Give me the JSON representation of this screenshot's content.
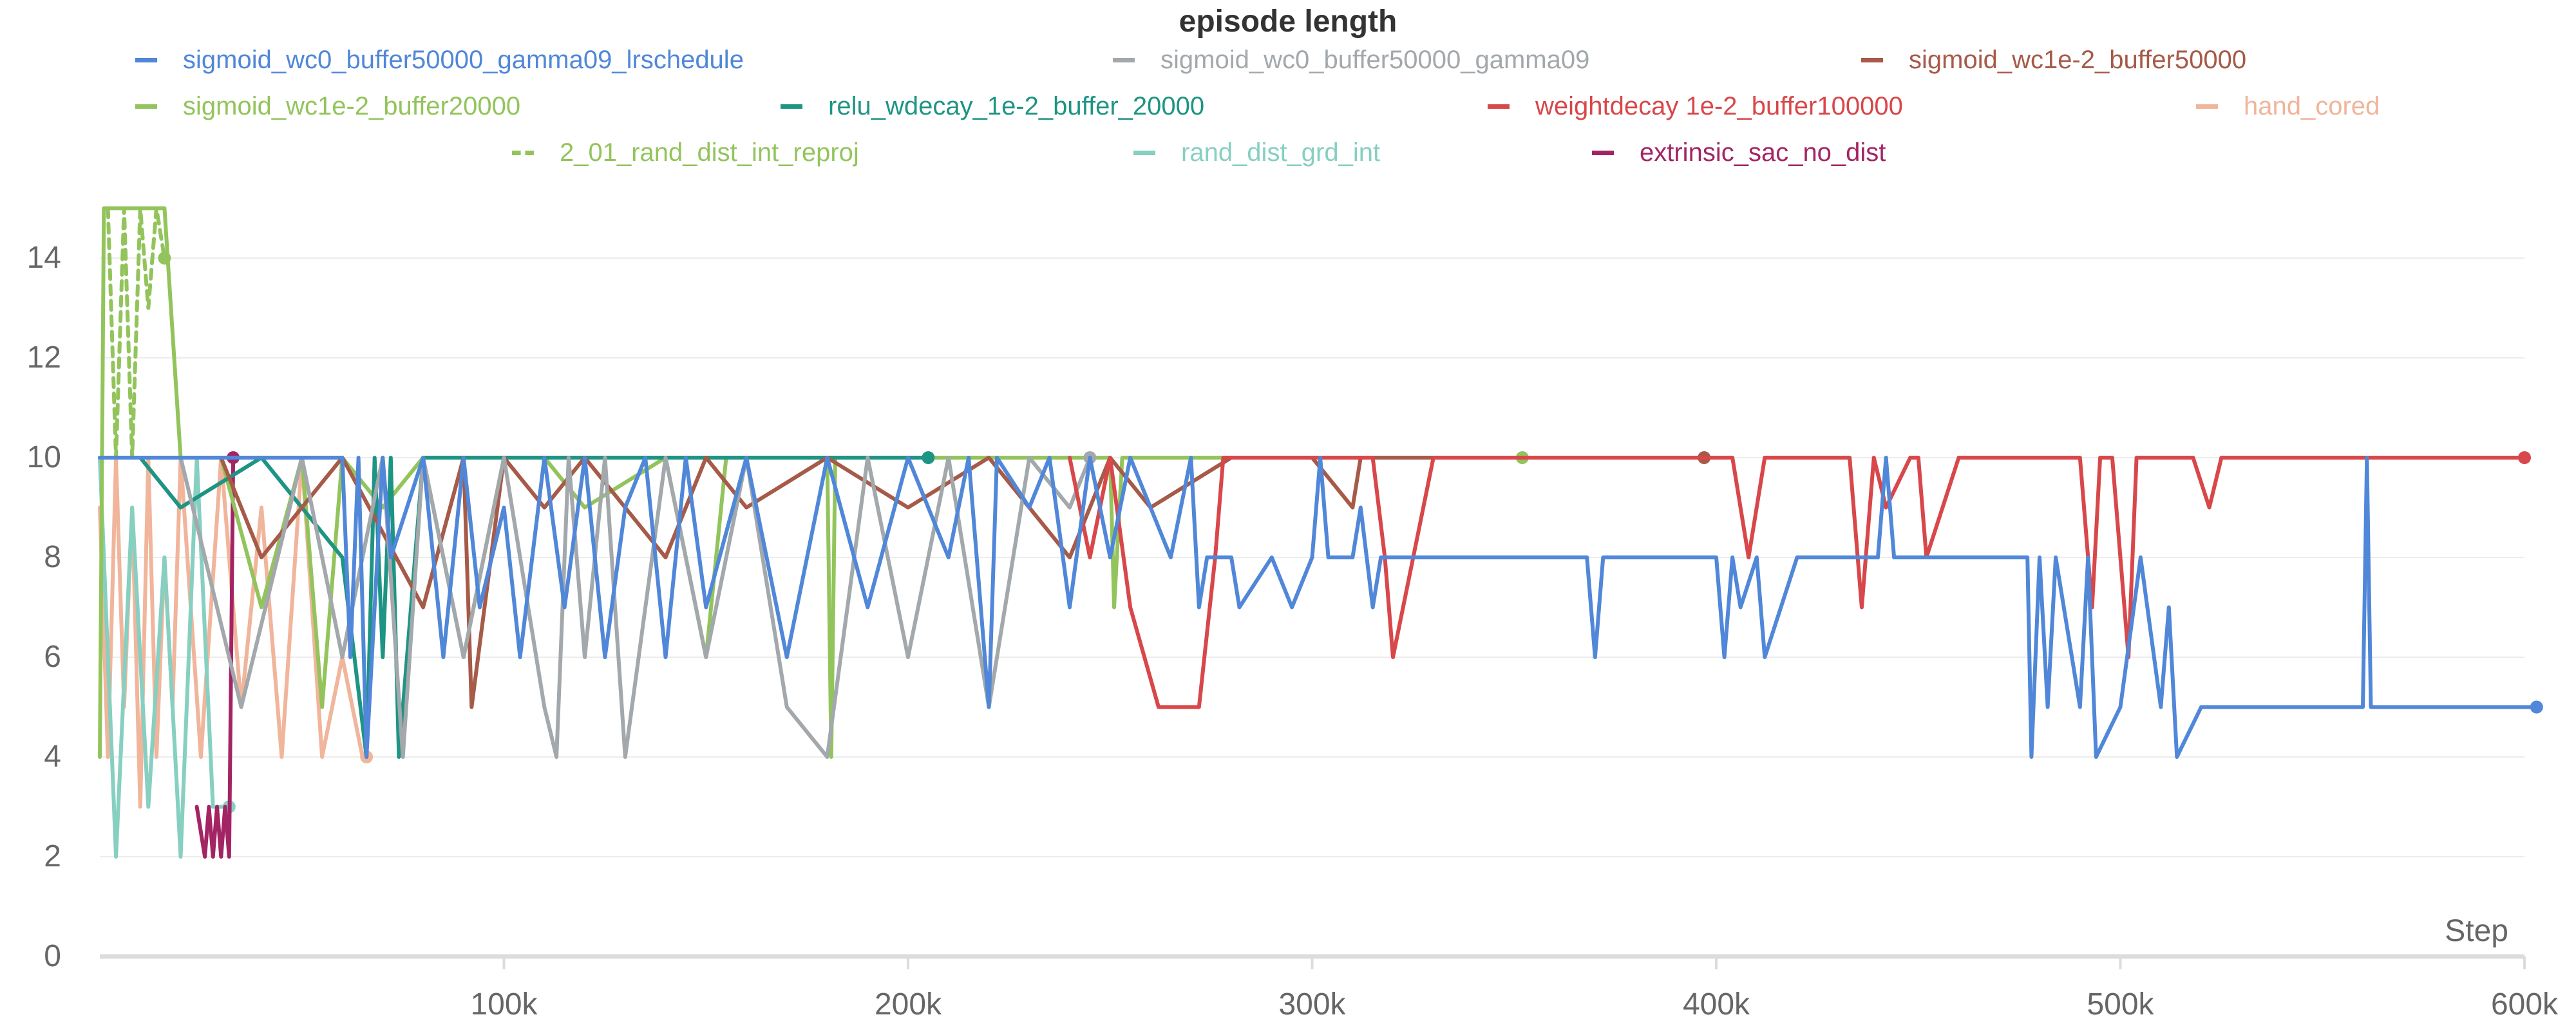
{
  "chart_data": {
    "type": "line",
    "title": "episode length",
    "xlabel": "Step",
    "ylabel": "",
    "xlim": [
      0,
      600000
    ],
    "ylim": [
      0,
      15
    ],
    "grid": true,
    "legend_position": "top",
    "x_ticks": [
      {
        "value": 100000,
        "label": "100k"
      },
      {
        "value": 200000,
        "label": "200k"
      },
      {
        "value": 300000,
        "label": "300k"
      },
      {
        "value": 400000,
        "label": "400k"
      },
      {
        "value": 500000,
        "label": "500k"
      },
      {
        "value": 600000,
        "label": "600k"
      }
    ],
    "y_ticks": [
      {
        "value": 0,
        "label": "0"
      },
      {
        "value": 2,
        "label": "2"
      },
      {
        "value": 4,
        "label": "4"
      },
      {
        "value": 6,
        "label": "6"
      },
      {
        "value": 8,
        "label": "8"
      },
      {
        "value": 10,
        "label": "10"
      },
      {
        "value": 12,
        "label": "12"
      },
      {
        "value": 14,
        "label": "14"
      }
    ],
    "series": [
      {
        "name": "sigmoid_wc0_buffer50000_gamma09_lrschedule",
        "color": "#5087d8",
        "dashed": false,
        "x": [
          0,
          2000,
          60000,
          62000,
          64000,
          66000,
          70000,
          72000,
          80000,
          85000,
          90000,
          94000,
          100000,
          104000,
          110000,
          115000,
          120000,
          125000,
          130000,
          135000,
          140000,
          145000,
          150000,
          160000,
          170000,
          180000,
          190000,
          200000,
          210000,
          215000,
          220000,
          222000,
          230000,
          235000,
          240000,
          245000,
          250000,
          255000,
          260000,
          265000,
          270000,
          272000,
          274000,
          280000,
          282000,
          290000,
          295000,
          300000,
          302000,
          304000,
          310000,
          312000,
          315000,
          317000,
          320000,
          330000,
          340000,
          350000,
          360000,
          368000,
          370000,
          372000,
          380000,
          390000,
          400000,
          402000,
          404000,
          406000,
          410000,
          412000,
          420000,
          440000,
          442000,
          444000,
          450000,
          470000,
          477000,
          478000,
          480000,
          482000,
          484000,
          490000,
          492000,
          494000,
          500000,
          505000,
          510000,
          512000,
          514000,
          520000,
          530000,
          540000,
          550000,
          560000,
          561000,
          562000,
          580000,
          600000,
          603000
        ],
        "y": [
          10,
          10,
          10,
          6,
          10,
          4,
          10,
          8,
          10,
          6,
          10,
          7,
          9,
          6,
          10,
          7,
          10,
          6,
          9,
          10,
          6,
          10,
          7,
          10,
          6,
          10,
          7,
          10,
          8,
          10,
          5,
          10,
          9,
          10,
          7,
          10,
          8,
          10,
          9,
          8,
          10,
          7,
          8,
          8,
          7,
          8,
          7,
          8,
          10,
          8,
          8,
          9,
          7,
          8,
          8,
          8,
          8,
          8,
          8,
          8,
          6,
          8,
          8,
          8,
          8,
          6,
          8,
          7,
          8,
          6,
          8,
          8,
          10,
          8,
          8,
          8,
          8,
          4,
          8,
          5,
          8,
          5,
          8,
          4,
          5,
          8,
          5,
          7,
          4,
          5,
          5,
          5,
          5,
          5,
          10,
          5,
          5,
          5,
          5
        ]
      },
      {
        "name": "sigmoid_wc0_buffer50000_gamma09",
        "color": "#a2a8ab",
        "dashed": false,
        "x": [
          20000,
          35000,
          50000,
          60000,
          70000,
          75000,
          80000,
          90000,
          100000,
          110000,
          113000,
          116000,
          120000,
          125000,
          130000,
          140000,
          150000,
          160000,
          170000,
          180000,
          190000,
          200000,
          210000,
          220000,
          230000,
          240000,
          245000
        ],
        "y": [
          10,
          5,
          10,
          6,
          10,
          4,
          10,
          6,
          10,
          5,
          4,
          10,
          6,
          10,
          4,
          10,
          6,
          10,
          5,
          4,
          10,
          6,
          10,
          5,
          10,
          9,
          10
        ]
      },
      {
        "name": "sigmoid_wc1e-2_buffer50000",
        "color": "#a65a48",
        "dashed": false,
        "x": [
          30000,
          40000,
          60000,
          80000,
          90000,
          92000,
          100000,
          110000,
          120000,
          140000,
          150000,
          160000,
          180000,
          200000,
          220000,
          240000,
          250000,
          260000,
          280000,
          300000,
          310000,
          312000,
          320000,
          350000,
          380000,
          397000
        ],
        "y": [
          10,
          8,
          10,
          7,
          10,
          5,
          10,
          9,
          10,
          8,
          10,
          9,
          10,
          9,
          10,
          8,
          10,
          9,
          10,
          10,
          9,
          10,
          10,
          10,
          10,
          10
        ]
      },
      {
        "name": "sigmoid_wc1e-2_buffer20000",
        "color": "#93c45c",
        "dashed": false,
        "x": [
          0,
          1000,
          16000,
          20000,
          30000,
          40000,
          50000,
          55000,
          60000,
          70000,
          80000,
          90000,
          100000,
          110000,
          120000,
          140000,
          150000,
          155000,
          160000,
          180000,
          181000,
          182000,
          200000,
          220000,
          240000,
          250000,
          251000,
          253000,
          260000,
          280000,
          300000,
          320000,
          340000,
          352000
        ],
        "y": [
          4,
          15,
          15,
          10,
          10,
          7,
          10,
          5,
          10,
          9,
          10,
          6,
          10,
          10,
          9,
          10,
          6,
          10,
          10,
          10,
          4,
          10,
          10,
          10,
          10,
          10,
          7,
          10,
          10,
          10,
          10,
          10,
          10,
          10
        ]
      },
      {
        "name": "relu_wdecay_1e-2_buffer_20000",
        "color": "#1e9484",
        "dashed": false,
        "x": [
          0,
          10000,
          20000,
          40000,
          60000,
          66000,
          68000,
          70000,
          72000,
          74000,
          80000,
          100000,
          120000,
          140000,
          160000,
          180000,
          205000
        ],
        "y": [
          10,
          10,
          9,
          10,
          8,
          4,
          10,
          6,
          10,
          4,
          10,
          10,
          10,
          10,
          10,
          10,
          10
        ]
      },
      {
        "name": "weightdecay 1e-2_buffer100000",
        "color": "#d8474a",
        "dashed": false,
        "x": [
          240000,
          245000,
          250000,
          255000,
          262000,
          264000,
          272000,
          276000,
          278000,
          280000,
          300000,
          315000,
          318000,
          320000,
          330000,
          350000,
          400000,
          404000,
          408000,
          412000,
          420000,
          433000,
          436000,
          439000,
          442000,
          448000,
          450000,
          452000,
          460000,
          470000,
          478000,
          480000,
          490000,
          493000,
          495000,
          498000,
          502000,
          504000,
          507000,
          510000,
          514000,
          518000,
          522000,
          525000,
          535000,
          600000
        ],
        "y": [
          10,
          8,
          10,
          7,
          5,
          5,
          5,
          8,
          10,
          10,
          10,
          10,
          8,
          6,
          10,
          10,
          10,
          10,
          8,
          10,
          10,
          10,
          7,
          10,
          9,
          10,
          10,
          8,
          10,
          10,
          10,
          10,
          10,
          7,
          10,
          10,
          6,
          10,
          10,
          10,
          10,
          10,
          9,
          10,
          10,
          10
        ]
      },
      {
        "name": "hand_cored",
        "color": "#f0b59b",
        "dashed": false,
        "x": [
          0,
          2000,
          4000,
          6000,
          8000,
          10000,
          12000,
          14000,
          16000,
          18000,
          20000,
          25000,
          30000,
          35000,
          40000,
          45000,
          50000,
          55000,
          60000,
          65000,
          66000
        ],
        "y": [
          9,
          4,
          10,
          5,
          9,
          3,
          10,
          4,
          8,
          5,
          10,
          4,
          10,
          5,
          9,
          4,
          10,
          4,
          6,
          4,
          4
        ]
      },
      {
        "name": "2_01_rand_dist_int_reproj",
        "color": "#93c45c",
        "dashed": true,
        "x": [
          2000,
          4000,
          6000,
          8000,
          10000,
          12000,
          14000,
          16000
        ],
        "y": [
          15,
          10,
          15,
          10,
          15,
          13,
          15,
          14
        ]
      },
      {
        "name": "rand_dist_grd_int",
        "color": "#86cfc1",
        "dashed": false,
        "x": [
          0,
          4000,
          8000,
          12000,
          16000,
          20000,
          24000,
          28000,
          32000
        ],
        "y": [
          10,
          2,
          9,
          3,
          8,
          2,
          10,
          3,
          3
        ]
      },
      {
        "name": "extrinsic_sac_no_dist",
        "color": "#a32464",
        "dashed": false,
        "x": [
          24000,
          26000,
          27000,
          28000,
          29000,
          30000,
          31000,
          32000,
          33000
        ],
        "y": [
          3,
          2,
          3,
          2,
          3,
          2,
          3,
          2,
          10
        ]
      }
    ]
  }
}
